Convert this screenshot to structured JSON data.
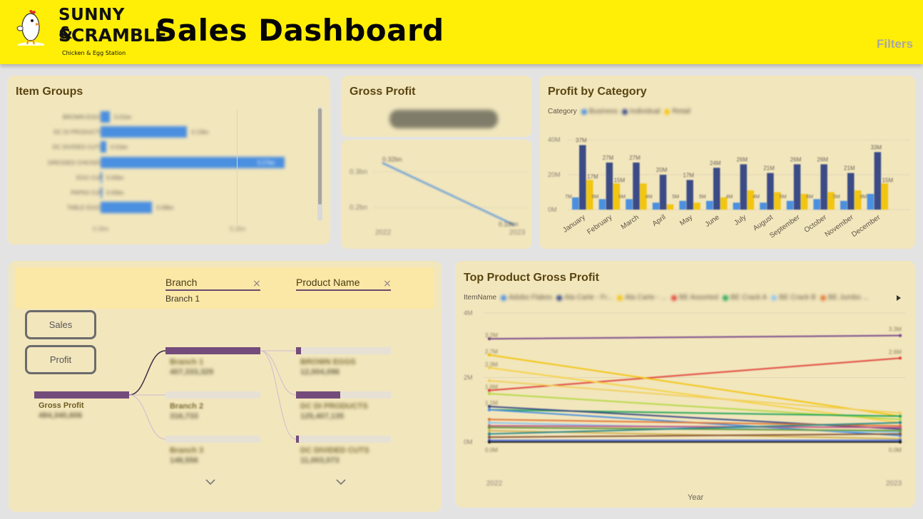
{
  "header": {
    "logo_line1": "SUNNY &",
    "logo_line2": "SCRAMBLE",
    "logo_tagline": "Chicken & Egg Station",
    "title": "Sales Dashboard",
    "filters_label": "Filters",
    "background": "#ffee06"
  },
  "item_groups": {
    "title": "Item Groups",
    "bar_color": "#4a8fe0",
    "rows": [
      {
        "label": "BROWN EGGS",
        "value": "0.01bn",
        "fraction": 0.05
      },
      {
        "label": "DC DI PRODUCTS",
        "value": "0.13bn",
        "fraction": 0.47
      },
      {
        "label": "DC DIVIDED CUTS",
        "value": "0.01bn",
        "fraction": 0.03
      },
      {
        "label": "DRESSED CHICKEN",
        "value": "0.27bn",
        "fraction": 1.0
      },
      {
        "label": "EGG CUP",
        "value": "0.00bn",
        "fraction": 0.006
      },
      {
        "label": "PAPAS CUP",
        "value": "0.00bn",
        "fraction": 0.006
      },
      {
        "label": "TABLE EGGS",
        "value": "0.08bn",
        "fraction": 0.28
      }
    ],
    "axis_ticks": [
      "0.0bn",
      "0.2bn"
    ]
  },
  "gross_profit": {
    "title": "Gross Profit",
    "trend": {
      "x": [
        "2022",
        "2023"
      ],
      "y_ticks": [
        "0.3bn",
        "0.2bn"
      ],
      "start_label": "0.32bn",
      "end_label": "0.18bn",
      "line_color": "#4a8fe0"
    }
  },
  "profit_by_category": {
    "title": "Profit by Category",
    "legend_title": "Category",
    "series_names": [
      "Business",
      "Individual",
      "Retail"
    ],
    "colors": {
      "Business": "#4a8fe0",
      "Individual": "#3b4b86",
      "Retail": "#f2c511"
    },
    "y_ticks": [
      "40M",
      "20M",
      "0M"
    ],
    "top_labels": [
      "37M",
      "27M",
      "27M",
      "20M",
      "17M",
      "24M",
      "26M",
      "21M",
      "26M",
      "26M",
      "21M",
      "33M"
    ],
    "retail_labels": [
      "17M",
      "15M",
      "",
      "",
      "",
      "",
      "",
      "",
      "",
      "",
      "",
      "15M"
    ],
    "business_labels": [
      "7M",
      "6M",
      "6M",
      "4M",
      "5M",
      "5M",
      "4M",
      "4M",
      "5M",
      "6M",
      "5M",
      "9M"
    ]
  },
  "decomposition_tree": {
    "fields": [
      {
        "name": "Branch",
        "filter": "Branch 1"
      },
      {
        "name": "Product Name",
        "filter": ""
      }
    ],
    "metric_buttons": [
      "Sales",
      "Profit"
    ],
    "root": {
      "label": "Gross Profit",
      "value": "484,340,606"
    },
    "branches": [
      {
        "label": "Branch 1",
        "value": "407,333,329",
        "fraction": 1.0
      },
      {
        "label": "Branch 2",
        "value": "316,733",
        "fraction": 0.0
      },
      {
        "label": "Branch 3",
        "value": "148,556",
        "fraction": 0.0
      }
    ],
    "products": [
      {
        "label": "BROWN EGGS",
        "value": "12,004,096",
        "fraction": 0.05
      },
      {
        "label": "DC DI PRODUCTS",
        "value": "125,407,135",
        "fraction": 0.47
      },
      {
        "label": "DC DIVIDED CUTS",
        "value": "11,003,073",
        "fraction": 0.03
      }
    ],
    "fill_color": "#744c7b"
  },
  "top_product": {
    "title": "Top Product Gross Profit",
    "legend_title": "ItemName",
    "legend_items": [
      {
        "name": "Adobo Flakes",
        "color": "#4a8fe0"
      },
      {
        "name": "Ala Carte - Fr...",
        "color": "#3b4b86"
      },
      {
        "name": "Ala Carte - ...",
        "color": "#f2c511"
      },
      {
        "name": "BE Assorted",
        "color": "#e0463c"
      },
      {
        "name": "BE Crack A",
        "color": "#26a65b"
      },
      {
        "name": "BE Crack B",
        "color": "#8fc6f0"
      },
      {
        "name": "BE Jumbo ...",
        "color": "#e07a3a"
      }
    ],
    "y_ticks": [
      "4M",
      "2M",
      "0M"
    ],
    "x_ticks": [
      "2022",
      "2023"
    ],
    "x_label": "Year",
    "left_labels": [
      "3.2M",
      "2.7M",
      "2.3M",
      "1.6M",
      "1.1M"
    ],
    "right_labels": [
      "3.3M",
      "2.6M"
    ],
    "bottom_labels": [
      "0.0M",
      "0.0M"
    ]
  },
  "chart_data": [
    {
      "type": "bar",
      "title": "Profit by Category",
      "categories": [
        "January",
        "February",
        "March",
        "April",
        "May",
        "June",
        "July",
        "August",
        "September",
        "October",
        "November",
        "December"
      ],
      "series": [
        {
          "name": "Business",
          "values": [
            7,
            6,
            6,
            4,
            5,
            5,
            4,
            4,
            5,
            6,
            5,
            9
          ]
        },
        {
          "name": "Individual",
          "values": [
            37,
            27,
            27,
            20,
            17,
            24,
            26,
            21,
            26,
            26,
            21,
            33
          ]
        },
        {
          "name": "Retail",
          "values": [
            17,
            15,
            15,
            3,
            4,
            7,
            11,
            10,
            9,
            10,
            11,
            15
          ]
        }
      ],
      "ylim": [
        0,
        45
      ]
    },
    {
      "type": "line",
      "title": "Top Product Gross Profit",
      "x": [
        "2022",
        "2023"
      ],
      "xlabel": "Year",
      "ylim": [
        0,
        4
      ],
      "series": [
        {
          "color": "#7a4a8a",
          "values": [
            3.2,
            3.3
          ]
        },
        {
          "color": "#e0463c",
          "values": [
            1.6,
            2.6
          ]
        },
        {
          "color": "#f2c511",
          "values": [
            2.7,
            0.8
          ]
        },
        {
          "color": "#f5d247",
          "values": [
            2.3,
            0.6
          ]
        },
        {
          "color": "#f0d060",
          "values": [
            1.9,
            0.9
          ]
        },
        {
          "color": "#b7d94a",
          "values": [
            1.5,
            0.7
          ]
        },
        {
          "color": "#26a65b",
          "values": [
            1.0,
            0.8
          ]
        },
        {
          "color": "#3b4b86",
          "values": [
            1.1,
            0.4
          ]
        },
        {
          "color": "#4a8fe0",
          "values": [
            1.0,
            0.2
          ]
        },
        {
          "color": "#e07a3a",
          "values": [
            0.7,
            0.5
          ]
        },
        {
          "color": "#8fc6f0",
          "values": [
            0.6,
            0.3
          ]
        },
        {
          "color": "#c05a8a",
          "values": [
            0.5,
            0.45
          ]
        },
        {
          "color": "#6a9a3a",
          "values": [
            0.45,
            0.35
          ]
        },
        {
          "color": "#d0b45a",
          "values": [
            0.35,
            0.1
          ]
        },
        {
          "color": "#2c8a8a",
          "values": [
            0.25,
            0.6
          ]
        },
        {
          "color": "#8a5a3a",
          "values": [
            0.15,
            0.25
          ]
        },
        {
          "color": "#4a6ae0",
          "values": [
            0.05,
            0.05
          ]
        },
        {
          "color": "#222222",
          "values": [
            0.0,
            0.0
          ]
        }
      ]
    },
    {
      "type": "line",
      "title": "Gross Profit",
      "x": [
        "2022",
        "2023"
      ],
      "series": [
        {
          "values": [
            0.32,
            0.18
          ]
        }
      ],
      "ylim": [
        0.16,
        0.34
      ]
    },
    {
      "type": "bar",
      "title": "Item Groups",
      "categories": [
        "BROWN EGGS",
        "DC DI PRODUCTS",
        "DC DIVIDED CUTS",
        "DRESSED CHICKEN",
        "EGG CUP",
        "PAPAS CUP",
        "TABLE EGGS"
      ],
      "values": [
        0.01,
        0.13,
        0.01,
        0.27,
        0.0,
        0.0,
        0.08
      ],
      "ylabel": "bn"
    }
  ]
}
